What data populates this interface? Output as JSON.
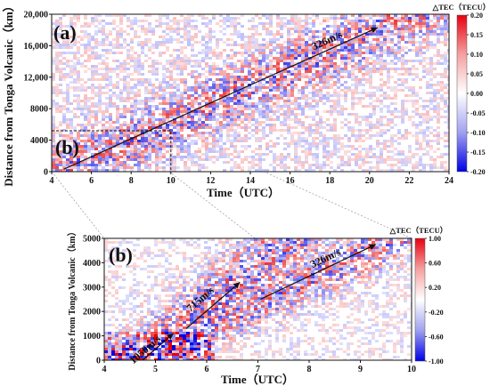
{
  "chart_data": [
    {
      "type": "heatmap",
      "panel_label": "(a)",
      "xlabel": "Time（UTC）",
      "ylabel": "Distance from Tonga Volcanic（km）",
      "xlim": [
        4,
        24
      ],
      "ylim": [
        0,
        20000
      ],
      "x_ticks": [
        4,
        6,
        8,
        10,
        12,
        14,
        16,
        18,
        20,
        22,
        24
      ],
      "y_ticks": [
        "0",
        "4000",
        "8000",
        "12,000",
        "16,000",
        "20,000"
      ],
      "y_tick_values": [
        0,
        4000,
        8000,
        12000,
        16000,
        20000
      ],
      "colorbar": {
        "title": "△TEC（TECU）",
        "ticks": [
          "0.20",
          "0.15",
          "0.10",
          "0.05",
          "0.00",
          "-0.05",
          "-0.10",
          "-0.15",
          "-0.20"
        ],
        "tick_values": [
          0.2,
          0.15,
          0.1,
          0.05,
          0.0,
          -0.05,
          -0.1,
          -0.15,
          -0.2
        ],
        "range": [
          -0.2,
          0.2
        ]
      },
      "annotations": [
        {
          "text": "326m/s",
          "from": [
            4.6,
            300
          ],
          "to": [
            20.4,
            18300
          ]
        }
      ],
      "inset_box": {
        "label": "(b)",
        "x": [
          4,
          10
        ],
        "y": [
          0,
          5200
        ]
      }
    },
    {
      "type": "heatmap",
      "panel_label": "(b)",
      "xlabel": "Time（UTC）",
      "ylabel": "Distance from Tonga Volcanic（km）",
      "xlim": [
        4,
        10
      ],
      "ylim": [
        0,
        5000
      ],
      "x_ticks": [
        4,
        5,
        6,
        7,
        8,
        9,
        10
      ],
      "y_ticks": [
        "0",
        "1000",
        "2000",
        "3000",
        "4000",
        "5000"
      ],
      "y_tick_values": [
        0,
        1000,
        2000,
        3000,
        4000,
        5000
      ],
      "colorbar": {
        "title": "△TEC（TECU）",
        "ticks": [
          "1.00",
          "0.60",
          "0.20",
          "-0.20",
          "-0.60",
          "-1.00"
        ],
        "tick_values": [
          1.0,
          0.6,
          0.2,
          -0.2,
          -0.6,
          -1.0
        ],
        "range": [
          -1.0,
          1.0
        ]
      },
      "annotations": [
        {
          "text": "1050m/s",
          "from": [
            4.75,
            0
          ],
          "to": [
            5.35,
            1100
          ]
        },
        {
          "text": "715m/s",
          "from": [
            5.6,
            1300
          ],
          "to": [
            6.65,
            3200
          ]
        },
        {
          "text": "326m/s",
          "from": [
            7.05,
            2500
          ],
          "to": [
            9.3,
            4750
          ]
        }
      ]
    }
  ]
}
